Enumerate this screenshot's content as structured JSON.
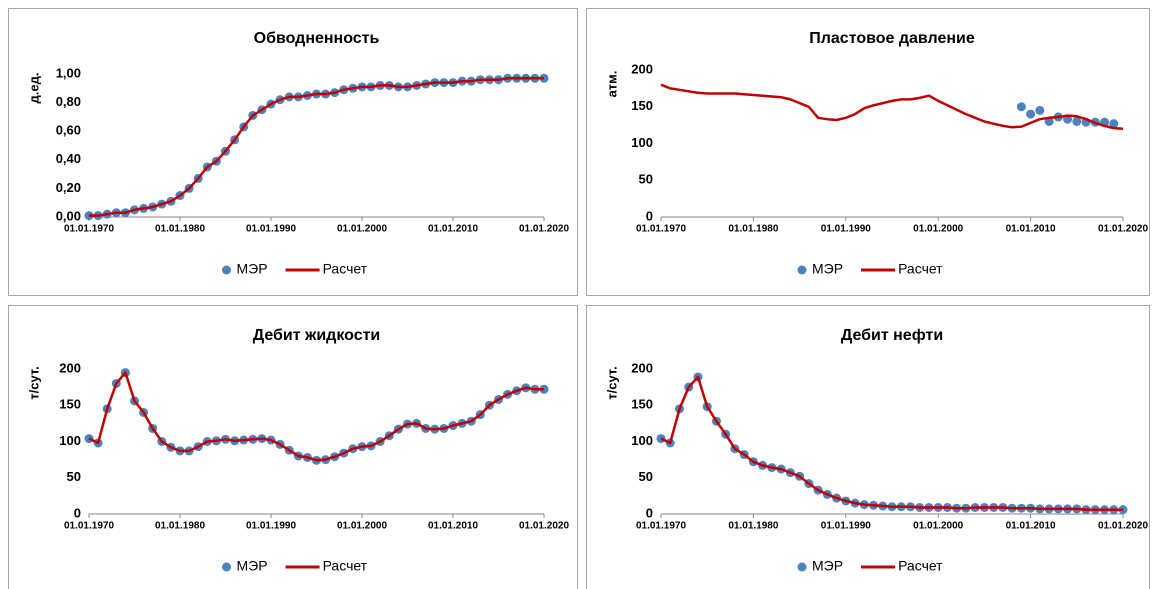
{
  "chart_data": [
    {
      "type": "line",
      "title": "Обводненность",
      "y_label": "д.ед.",
      "legend": "bottom",
      "x": [
        1970,
        1971,
        1972,
        1973,
        1974,
        1975,
        1976,
        1977,
        1978,
        1979,
        1980,
        1981,
        1982,
        1983,
        1984,
        1985,
        1986,
        1987,
        1988,
        1989,
        1990,
        1991,
        1992,
        1993,
        1994,
        1995,
        1996,
        1997,
        1998,
        1999,
        2000,
        2001,
        2002,
        2003,
        2004,
        2005,
        2006,
        2007,
        2008,
        2009,
        2010,
        2011,
        2012,
        2013,
        2014,
        2015,
        2016,
        2017,
        2018,
        2019,
        2020
      ],
      "xlim": [
        1970,
        2020
      ],
      "xticks": [
        {
          "value": 1970,
          "label": "01.01.1970"
        },
        {
          "value": 1980,
          "label": "01.01.1980"
        },
        {
          "value": 1990,
          "label": "01.01.1990"
        },
        {
          "value": 2000,
          "label": "01.01.2000"
        },
        {
          "value": 2010,
          "label": "01.01.2010"
        },
        {
          "value": 2020,
          "label": "01.01.2020"
        }
      ],
      "ylim": [
        0,
        1
      ],
      "yticks": [
        {
          "value": 0,
          "label": "0,00"
        },
        {
          "value": 0.2,
          "label": "0,20"
        },
        {
          "value": 0.4,
          "label": "0,40"
        },
        {
          "value": 0.6,
          "label": "0,60"
        },
        {
          "value": 0.8,
          "label": "0,80"
        },
        {
          "value": 1,
          "label": "1,00"
        }
      ],
      "series": [
        {
          "name": "МЭР",
          "kind": "marker",
          "color": "#4f81bd",
          "values": [
            0.01,
            0.01,
            0.02,
            0.03,
            0.03,
            0.05,
            0.06,
            0.07,
            0.09,
            0.11,
            0.15,
            0.2,
            0.27,
            0.35,
            0.39,
            0.46,
            0.54,
            0.63,
            0.71,
            0.75,
            0.79,
            0.82,
            0.84,
            0.84,
            0.85,
            0.86,
            0.86,
            0.87,
            0.89,
            0.9,
            0.91,
            0.91,
            0.92,
            0.92,
            0.91,
            0.91,
            0.92,
            0.93,
            0.94,
            0.94,
            0.94,
            0.95,
            0.95,
            0.96,
            0.96,
            0.96,
            0.97,
            0.97,
            0.97,
            0.97,
            0.97
          ]
        },
        {
          "name": "Расчет",
          "kind": "line",
          "color": "#c00000",
          "values": [
            0.01,
            0.01,
            0.02,
            0.03,
            0.03,
            0.05,
            0.06,
            0.07,
            0.09,
            0.11,
            0.15,
            0.2,
            0.27,
            0.35,
            0.39,
            0.46,
            0.54,
            0.63,
            0.71,
            0.75,
            0.79,
            0.82,
            0.84,
            0.84,
            0.85,
            0.86,
            0.86,
            0.87,
            0.89,
            0.9,
            0.91,
            0.91,
            0.92,
            0.92,
            0.91,
            0.91,
            0.92,
            0.93,
            0.94,
            0.94,
            0.94,
            0.95,
            0.95,
            0.96,
            0.96,
            0.96,
            0.97,
            0.97,
            0.97,
            0.97,
            0.97
          ]
        }
      ]
    },
    {
      "type": "line",
      "title": "Пластовое давление",
      "y_label": "атм.",
      "legend": "bottom",
      "x": [
        1970,
        1971,
        1972,
        1973,
        1974,
        1975,
        1976,
        1977,
        1978,
        1979,
        1980,
        1981,
        1982,
        1983,
        1984,
        1985,
        1986,
        1987,
        1988,
        1989,
        1990,
        1991,
        1992,
        1993,
        1994,
        1995,
        1996,
        1997,
        1998,
        1999,
        2000,
        2001,
        2002,
        2003,
        2004,
        2005,
        2006,
        2007,
        2008,
        2009,
        2010,
        2011,
        2012,
        2013,
        2014,
        2015,
        2016,
        2017,
        2018,
        2019,
        2020
      ],
      "xlim": [
        1970,
        2020
      ],
      "xticks": [
        {
          "value": 1970,
          "label": "01.01.1970"
        },
        {
          "value": 1980,
          "label": "01.01.1980"
        },
        {
          "value": 1990,
          "label": "01.01.1990"
        },
        {
          "value": 2000,
          "label": "01.01.2000"
        },
        {
          "value": 2010,
          "label": "01.01.2010"
        },
        {
          "value": 2020,
          "label": "01.01.2020"
        }
      ],
      "ylim": [
        0,
        200
      ],
      "yticks": [
        0,
        50,
        100,
        150,
        200
      ],
      "series": [
        {
          "name": "МЭР",
          "kind": "marker",
          "color": "#4f81bd",
          "x": [
            2009,
            2010,
            2011,
            2012,
            2013,
            2014,
            2015,
            2016,
            2017,
            2018,
            2019
          ],
          "values": [
            150,
            140,
            145,
            130,
            136,
            133,
            130,
            129,
            129,
            129,
            127
          ]
        },
        {
          "name": "Расчет",
          "kind": "line",
          "color": "#c00000",
          "values": [
            180,
            175,
            173,
            171,
            169,
            168,
            168,
            168,
            168,
            167,
            166,
            165,
            164,
            163,
            160,
            155,
            150,
            135,
            133,
            132,
            135,
            140,
            148,
            152,
            155,
            158,
            160,
            160,
            162,
            165,
            158,
            152,
            146,
            140,
            135,
            130,
            127,
            124,
            122,
            123,
            128,
            133,
            135,
            136,
            138,
            137,
            133,
            128,
            124,
            121,
            120
          ]
        }
      ]
    },
    {
      "type": "line",
      "title": "Дебит жидкости",
      "y_label": "т/сут.",
      "legend": "bottom",
      "x": [
        1970,
        1971,
        1972,
        1973,
        1974,
        1975,
        1976,
        1977,
        1978,
        1979,
        1980,
        1981,
        1982,
        1983,
        1984,
        1985,
        1986,
        1987,
        1988,
        1989,
        1990,
        1991,
        1992,
        1993,
        1994,
        1995,
        1996,
        1997,
        1998,
        1999,
        2000,
        2001,
        2002,
        2003,
        2004,
        2005,
        2006,
        2007,
        2008,
        2009,
        2010,
        2011,
        2012,
        2013,
        2014,
        2015,
        2016,
        2017,
        2018,
        2019,
        2020
      ],
      "xlim": [
        1970,
        2020
      ],
      "xticks": [
        {
          "value": 1970,
          "label": "01.01.1970"
        },
        {
          "value": 1980,
          "label": "01.01.1980"
        },
        {
          "value": 1990,
          "label": "01.01.1990"
        },
        {
          "value": 2000,
          "label": "01.01.2000"
        },
        {
          "value": 2010,
          "label": "01.01.2010"
        },
        {
          "value": 2020,
          "label": "01.01.2020"
        }
      ],
      "ylim": [
        0,
        200
      ],
      "yticks": [
        0,
        50,
        100,
        150,
        200
      ],
      "series": [
        {
          "name": "МЭР",
          "kind": "marker",
          "color": "#4f81bd",
          "values": [
            104,
            98,
            145,
            180,
            195,
            156,
            140,
            118,
            100,
            92,
            87,
            87,
            93,
            100,
            101,
            103,
            101,
            102,
            103,
            104,
            102,
            96,
            88,
            80,
            78,
            74,
            75,
            79,
            84,
            90,
            93,
            94,
            100,
            108,
            117,
            124,
            125,
            118,
            117,
            118,
            122,
            125,
            128,
            137,
            150,
            158,
            165,
            170,
            174,
            172,
            172
          ]
        },
        {
          "name": "Расчет",
          "kind": "line",
          "color": "#c00000",
          "values": [
            104,
            98,
            145,
            180,
            195,
            156,
            140,
            118,
            100,
            92,
            87,
            87,
            93,
            100,
            101,
            103,
            101,
            102,
            103,
            104,
            102,
            96,
            88,
            80,
            78,
            74,
            75,
            79,
            84,
            90,
            93,
            94,
            100,
            108,
            117,
            124,
            125,
            118,
            117,
            118,
            122,
            125,
            128,
            137,
            150,
            158,
            165,
            170,
            174,
            172,
            172
          ]
        }
      ]
    },
    {
      "type": "line",
      "title": "Дебит нефти",
      "y_label": "т/сут.",
      "legend": "bottom",
      "x": [
        1970,
        1971,
        1972,
        1973,
        1974,
        1975,
        1976,
        1977,
        1978,
        1979,
        1980,
        1981,
        1982,
        1983,
        1984,
        1985,
        1986,
        1987,
        1988,
        1989,
        1990,
        1991,
        1992,
        1993,
        1994,
        1995,
        1996,
        1997,
        1998,
        1999,
        2000,
        2001,
        2002,
        2003,
        2004,
        2005,
        2006,
        2007,
        2008,
        2009,
        2010,
        2011,
        2012,
        2013,
        2014,
        2015,
        2016,
        2017,
        2018,
        2019,
        2020
      ],
      "xlim": [
        1970,
        2020
      ],
      "xticks": [
        {
          "value": 1970,
          "label": "01.01.1970"
        },
        {
          "value": 1980,
          "label": "01.01.1980"
        },
        {
          "value": 1990,
          "label": "01.01.1990"
        },
        {
          "value": 2000,
          "label": "01.01.2000"
        },
        {
          "value": 2010,
          "label": "01.01.2010"
        },
        {
          "value": 2020,
          "label": "01.01.2020"
        }
      ],
      "ylim": [
        0,
        200
      ],
      "yticks": [
        0,
        50,
        100,
        150,
        200
      ],
      "series": [
        {
          "name": "МЭР",
          "kind": "marker",
          "color": "#4f81bd",
          "values": [
            104,
            98,
            145,
            175,
            189,
            148,
            128,
            110,
            90,
            82,
            72,
            67,
            64,
            62,
            57,
            52,
            42,
            33,
            27,
            22,
            18,
            15,
            13,
            12,
            11,
            10,
            10,
            10,
            9,
            9,
            9,
            9,
            8,
            8,
            9,
            9,
            9,
            9,
            8,
            8,
            8,
            7,
            7,
            7,
            7,
            7,
            6,
            6,
            6,
            6,
            6
          ]
        },
        {
          "name": "Расчет",
          "kind": "line",
          "color": "#c00000",
          "values": [
            104,
            98,
            145,
            175,
            189,
            148,
            128,
            110,
            90,
            82,
            72,
            67,
            64,
            62,
            57,
            52,
            42,
            33,
            27,
            22,
            18,
            15,
            13,
            12,
            11,
            10,
            10,
            10,
            9,
            9,
            9,
            9,
            8,
            8,
            9,
            9,
            9,
            9,
            8,
            8,
            8,
            7,
            7,
            7,
            7,
            7,
            6,
            6,
            6,
            6,
            6
          ]
        }
      ]
    }
  ]
}
